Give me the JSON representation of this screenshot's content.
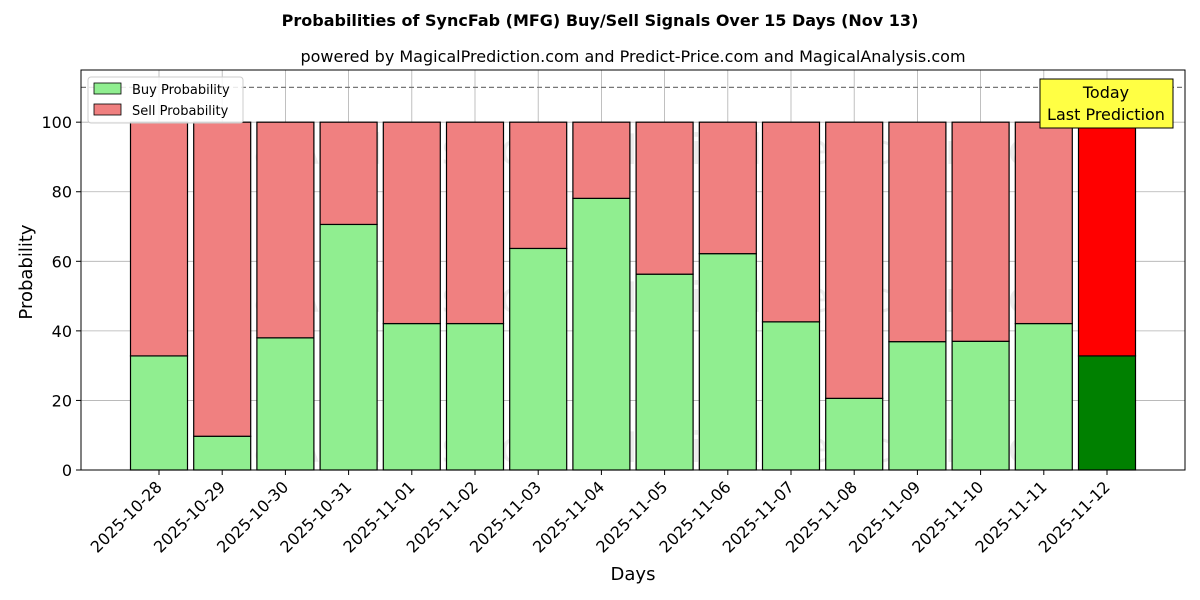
{
  "chart_data": {
    "type": "bar",
    "stacked": true,
    "title": "Probabilities of SyncFab (MFG) Buy/Sell Signals Over 15 Days (Nov 13)",
    "subtitle": "powered by MagicalPrediction.com and Predict-Price.com and MagicalAnalysis.com",
    "xlabel": "Days",
    "ylabel": "Probability",
    "ylim": [
      0,
      115
    ],
    "yticks": [
      0,
      20,
      40,
      60,
      80,
      100
    ],
    "grid": true,
    "legend_position": "top-left",
    "reference_line": 110,
    "categories": [
      "2025-10-28",
      "2025-10-29",
      "2025-10-30",
      "2025-10-31",
      "2025-11-01",
      "2025-11-02",
      "2025-11-03",
      "2025-11-04",
      "2025-11-05",
      "2025-11-06",
      "2025-11-07",
      "2025-11-08",
      "2025-11-09",
      "2025-11-10",
      "2025-11-11",
      "2025-11-12"
    ],
    "series": [
      {
        "name": "Buy Probability",
        "color": "#90ee90",
        "highlight_color": "#008000",
        "values": [
          32.8,
          9.7,
          38.0,
          70.6,
          42.1,
          42.1,
          63.7,
          78.1,
          56.3,
          62.2,
          42.6,
          20.6,
          36.9,
          37.0,
          42.1,
          32.8
        ]
      },
      {
        "name": "Sell Probability",
        "color": "#f08080",
        "highlight_color": "#ff0000",
        "values": [
          67.2,
          90.3,
          62.0,
          29.4,
          57.9,
          57.9,
          36.3,
          21.9,
          43.7,
          37.8,
          57.4,
          79.4,
          63.1,
          63.0,
          57.9,
          67.2
        ]
      }
    ],
    "highlight_index": 15,
    "annotation": {
      "line1": "Today",
      "line2": "Last Prediction",
      "color": "#ffff44"
    },
    "watermarks": [
      "MagicalAnalysis.com",
      "MagicalPrediction.com"
    ]
  }
}
